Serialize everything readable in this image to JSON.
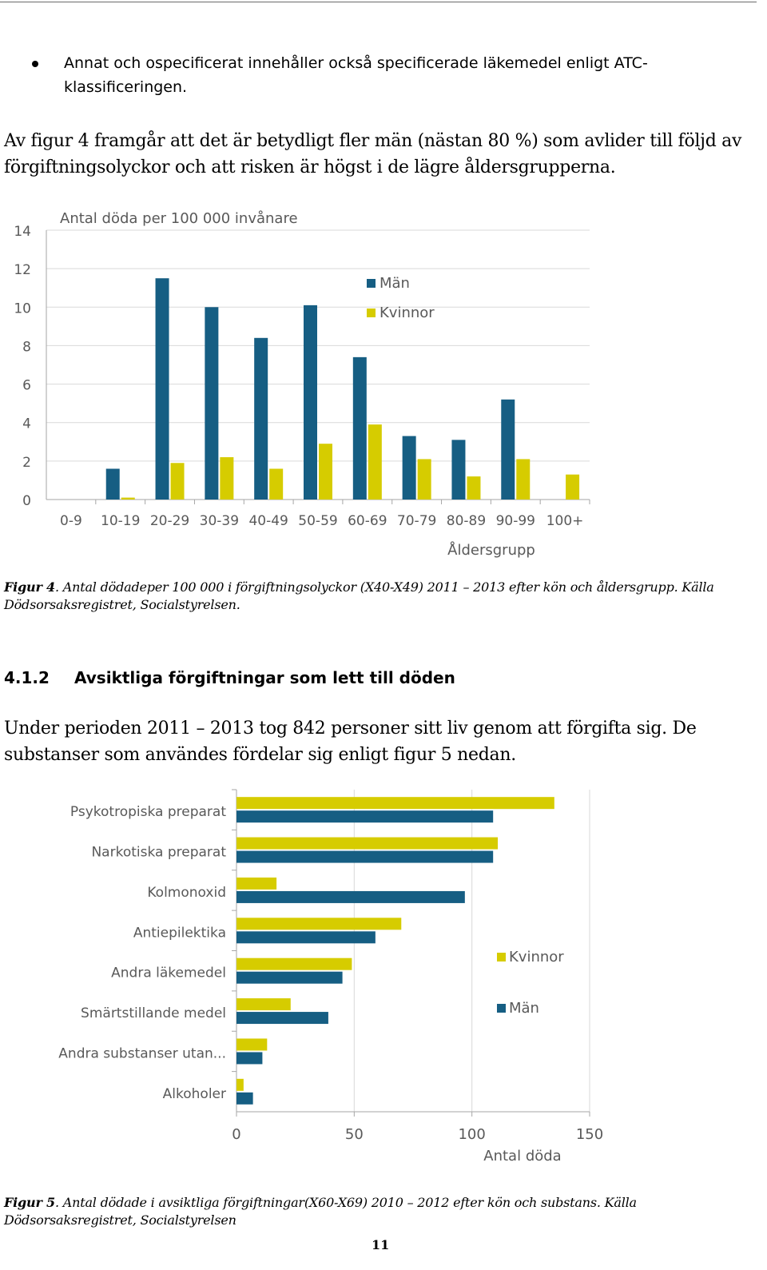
{
  "bullet": {
    "text": "Annat och ospecificerat innehåller också specificerade läkemedel enligt ATC-klassificeringen."
  },
  "paragraph1": "Av figur 4 framgår att det är betydligt fler män (nästan 80 %) som avlider till följd av förgiftningsolyckor och att risken är högst i de lägre åldersgrupperna.",
  "figure4_caption": {
    "label": "Figur 4",
    "text": ". Antal dödadeper 100 000 i förgiftningsolyckor (X40-X49) 2011 – 2013 efter kön och åldersgrupp. Källa Dödsorsaksregistret, Socialstyrelsen."
  },
  "section": {
    "number": "4.1.2",
    "title": "Avsiktliga förgiftningar som lett till döden"
  },
  "paragraph2": "Under perioden 2011 – 2013 tog 842 personer sitt liv genom att förgifta sig. De substanser som användes fördelar sig enligt figur 5 nedan.",
  "figure5_caption": {
    "label": "Figur 5",
    "text": ". Antal dödade i avsiktliga förgiftningar(X60-X69) 2010 – 2012 efter kön och substans. Källa Dödsorsaksregistret, Socialstyrelsen"
  },
  "page_number": "11",
  "colors": {
    "men": "#165e83",
    "women": "#d6cc00",
    "grid": "#d9d9d9",
    "axis": "#a6a6a6",
    "label": "#595959"
  },
  "chart_data": [
    {
      "type": "bar",
      "orientation": "vertical",
      "title": "",
      "ylabel": "Antal döda per 100 000 invånare",
      "xlabel": "Åldersgrupp",
      "ylim": [
        0,
        14
      ],
      "yticks": [
        "0",
        "2",
        "4",
        "6",
        "8",
        "10",
        "12",
        "14"
      ],
      "grid": true,
      "legend_position": "top-center",
      "categories": [
        "0-9",
        "10-19",
        "20-29",
        "30-39",
        "40-49",
        "50-59",
        "60-69",
        "70-79",
        "80-89",
        "90-99",
        "100+"
      ],
      "series": [
        {
          "name": "Män",
          "values": [
            0,
            1.6,
            11.5,
            10.0,
            8.4,
            10.1,
            7.4,
            3.3,
            3.1,
            5.2,
            0
          ]
        },
        {
          "name": "Kvinnor",
          "values": [
            0,
            0.1,
            1.9,
            2.2,
            1.6,
            2.9,
            3.9,
            2.1,
            1.2,
            2.1,
            1.3
          ]
        }
      ]
    },
    {
      "type": "bar",
      "orientation": "horizontal",
      "title": "",
      "xlabel": "Antal döda",
      "ylabel": "",
      "xlim": [
        0,
        150
      ],
      "xticks": [
        "0",
        "50",
        "100",
        "150"
      ],
      "grid": true,
      "legend_position": "right",
      "categories": [
        "Psykotropiska preparat",
        "Narkotiska preparat",
        "Kolmonoxid",
        "Antiepilektika",
        "Andra läkemedel",
        "Smärtstillande medel",
        "Andra substanser utan...",
        "Alkoholer"
      ],
      "series": [
        {
          "name": "Kvinnor",
          "values": [
            135,
            111,
            17,
            70,
            49,
            23,
            13,
            3
          ]
        },
        {
          "name": "Män",
          "values": [
            109,
            109,
            97,
            59,
            45,
            39,
            11,
            7
          ]
        }
      ]
    }
  ]
}
